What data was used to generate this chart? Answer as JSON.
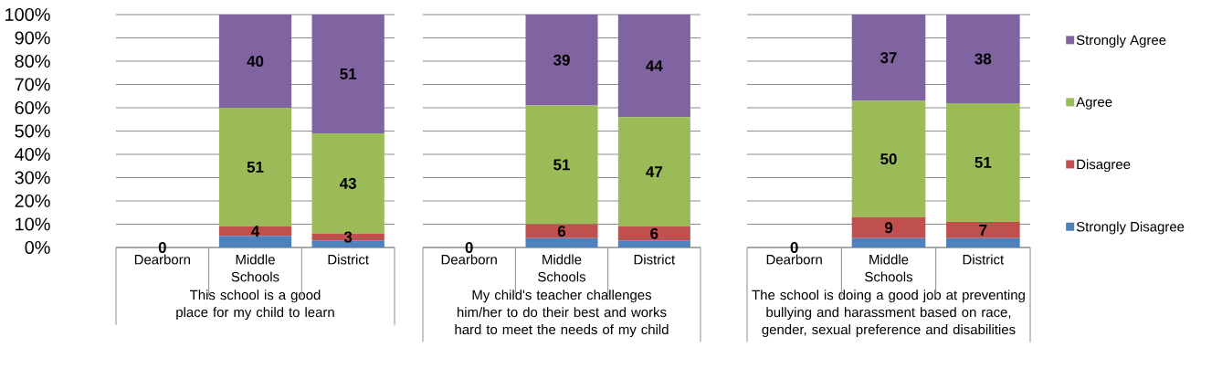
{
  "chart_data": [
    {
      "type": "bar",
      "stacked": true,
      "xlabel": "This school is a good place for my child to learn",
      "categories": [
        "Dearborn",
        "Middle Schools",
        "District"
      ],
      "ylim": [
        0,
        100
      ],
      "yticks": [
        {
          "value": 0,
          "label": "0%"
        },
        {
          "value": 10,
          "label": "10%"
        },
        {
          "value": 20,
          "label": "20%"
        },
        {
          "value": 30,
          "label": "30%"
        },
        {
          "value": 40,
          "label": "40%"
        },
        {
          "value": 50,
          "label": "50%"
        },
        {
          "value": 60,
          "label": "60%"
        },
        {
          "value": 70,
          "label": "70%"
        },
        {
          "value": 80,
          "label": "80%"
        },
        {
          "value": 90,
          "label": "90%"
        },
        {
          "value": 100,
          "label": "100%"
        }
      ],
      "grid": "y",
      "series": [
        {
          "color": "#4f81bd",
          "values": [
            0,
            5,
            3
          ],
          "value_labels": [
            "0",
            null,
            null
          ]
        },
        {
          "color": "#c0504d",
          "values": [
            0,
            4,
            3
          ],
          "value_labels": [
            null,
            "4",
            "3"
          ]
        },
        {
          "color": "#9bbb59",
          "values": [
            0,
            51,
            43
          ],
          "value_labels": [
            null,
            "51",
            "43"
          ]
        },
        {
          "color": "#8064a2",
          "values": [
            0,
            40,
            51
          ],
          "value_labels": [
            null,
            "40",
            "51"
          ]
        }
      ]
    },
    {
      "type": "bar",
      "stacked": true,
      "xlabel": "My child's teacher challenges him/her to do their best and works hard to meet the needs of my child",
      "categories": [
        "Dearborn",
        "Middle Schools",
        "District"
      ],
      "ylim": [
        0,
        100
      ],
      "yticks": [
        0,
        10,
        20,
        30,
        40,
        50,
        60,
        70,
        80,
        90,
        100
      ],
      "grid": "y",
      "tick_labels": "x",
      "series": [
        {
          "color": "#4f81bd",
          "values": [
            0,
            4,
            3
          ],
          "value_labels": [
            "0",
            null,
            null
          ]
        },
        {
          "color": "#c0504d",
          "values": [
            0,
            6,
            6
          ],
          "value_labels": [
            null,
            "6",
            "6"
          ]
        },
        {
          "color": "#9bbb59",
          "values": [
            0,
            51,
            47
          ],
          "value_labels": [
            null,
            "51",
            "47"
          ]
        },
        {
          "color": "#8064a2",
          "values": [
            0,
            39,
            44
          ],
          "value_labels": [
            null,
            "39",
            "44"
          ]
        }
      ]
    },
    {
      "type": "bar",
      "stacked": true,
      "xlabel": "The school is doing a good job at preventing bullying and harassment based on race, gender, sexual preference and disabilities",
      "categories": [
        "Dearborn",
        "Middle Schools",
        "District"
      ],
      "ylim": [
        0,
        100
      ],
      "yticks": [
        0,
        10,
        20,
        30,
        40,
        50,
        60,
        70,
        80,
        90,
        100
      ],
      "grid": "y",
      "tick_labels": "x",
      "legend": "right",
      "series": [
        {
          "name": "Strongly Disagree",
          "color": "#4f81bd",
          "values": [
            0,
            4,
            4
          ],
          "value_labels": [
            "0",
            null,
            null
          ]
        },
        {
          "name": "Disagree",
          "color": "#c0504d",
          "values": [
            0,
            9,
            7
          ],
          "value_labels": [
            null,
            "9",
            "7"
          ]
        },
        {
          "name": "Agree",
          "color": "#9bbb59",
          "values": [
            0,
            50,
            51
          ],
          "value_labels": [
            null,
            "50",
            "51"
          ]
        },
        {
          "name": "Strongly Agree",
          "color": "#8064a2",
          "values": [
            0,
            37,
            38
          ],
          "value_labels": [
            null,
            "37",
            "38"
          ]
        }
      ]
    }
  ]
}
